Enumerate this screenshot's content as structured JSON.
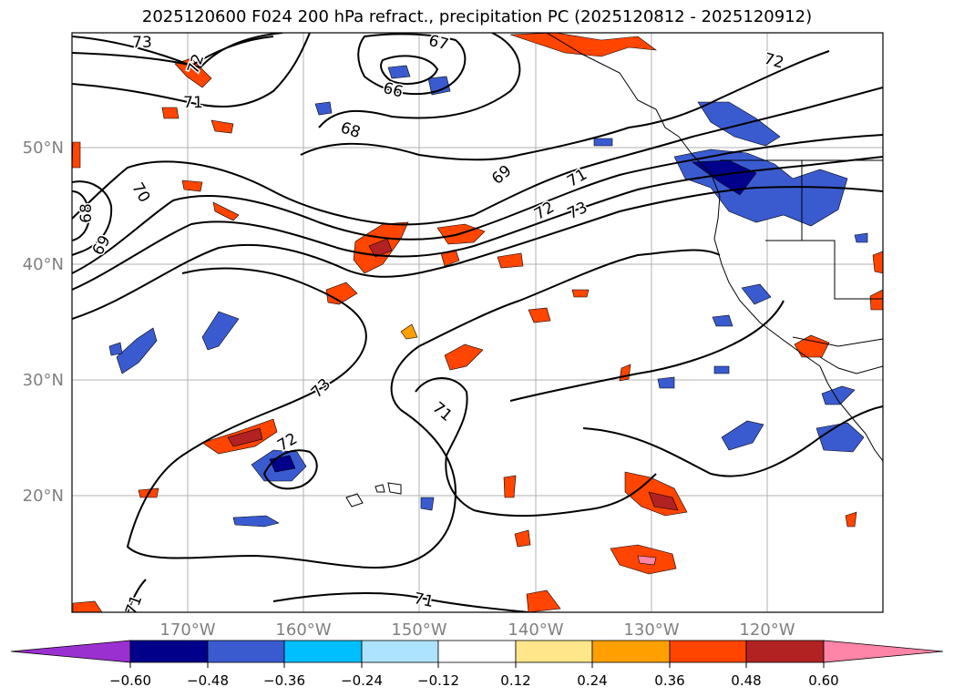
{
  "title": "2025120600 F024 200 hPa refract., precipitation PC (2025120812 - 2025120912)",
  "latitude_labels": [
    "50°N",
    "40°N",
    "30°N",
    "20°N"
  ],
  "longitude_labels": [
    "170°W",
    "160°W",
    "150°W",
    "140°W",
    "130°W",
    "120°W"
  ],
  "contour_labels": [
    "73",
    "72",
    "71",
    "67",
    "66",
    "68",
    "70",
    "69",
    "69",
    "68",
    "71",
    "72",
    "73",
    "73",
    "71",
    "72",
    "71",
    "72",
    "71"
  ],
  "colorbar": {
    "tick_labels": [
      "−0.60",
      "−0.48",
      "−0.36",
      "−0.24",
      "−0.12",
      "0.12",
      "0.24",
      "0.36",
      "0.48",
      "0.60"
    ],
    "colors": [
      "#9b30d0",
      "#00008b",
      "#3a5bd0",
      "#00bfff",
      "#aee3ff",
      "#ffffff",
      "#ffe68a",
      "#ffa000",
      "#ff4500",
      "#b22222",
      "#ff85a8"
    ]
  },
  "colors": {
    "grid": "#b0b0b0",
    "contour": "#000000",
    "coast": "#000000",
    "axis_label": "#808080"
  }
}
